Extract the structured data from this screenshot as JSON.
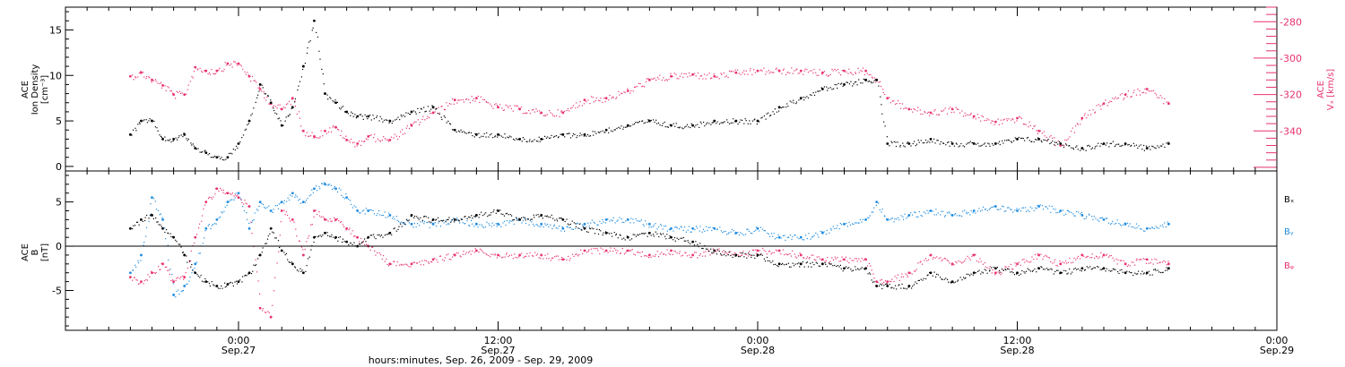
{
  "colors": {
    "black": "#000000",
    "pink": "#e8336d",
    "blue": "#1f8ce0"
  },
  "chart_data": [
    {
      "type": "scatter",
      "panel": "top",
      "left_axis": {
        "label_lines": [
          "ACE",
          "Ion Density",
          "[cm⁻³]"
        ],
        "ylim": [
          -0.5,
          17.5
        ],
        "ticks": [
          0,
          5,
          10,
          15
        ],
        "tick_labels": [
          "0",
          "5",
          "10",
          "15"
        ]
      },
      "right_axis": {
        "label_lines": [
          "ACE",
          "Vₓ [km/s]"
        ],
        "ylim": [
          -362,
          -272
        ],
        "ticks": [
          -280,
          -300,
          -320,
          -340
        ],
        "tick_labels": [
          "-280",
          "-300",
          "-320",
          "-340"
        ]
      },
      "grid": false,
      "series": [
        {
          "axis": "left",
          "color": "#000000",
          "x": [
            -5,
            -4.5,
            -4,
            -3.5,
            -3,
            -2.5,
            -2,
            -1.5,
            -1,
            -0.5,
            0,
            0.5,
            1,
            1.5,
            2,
            2.5,
            3,
            3.5,
            4,
            4.5,
            5,
            5.5,
            6,
            7,
            8,
            9,
            10,
            11,
            12,
            13,
            14,
            15,
            16,
            17,
            18,
            19,
            20,
            21,
            22,
            23,
            24,
            25,
            26,
            27,
            28,
            29,
            29.5,
            30,
            31,
            32,
            33,
            34,
            35,
            36,
            37,
            38,
            39,
            40,
            41,
            42,
            43
          ],
          "values": [
            3.5,
            5,
            5,
            3,
            3,
            3.5,
            2,
            1.5,
            1,
            1,
            2.5,
            5,
            9,
            7,
            4.5,
            6.5,
            11,
            16,
            8,
            7,
            6,
            5.5,
            5.5,
            5,
            6,
            6.5,
            4,
            3.5,
            3.5,
            3,
            3,
            3.5,
            3.5,
            4,
            4.5,
            5,
            4.5,
            4.5,
            5,
            5,
            5,
            6.5,
            7.5,
            8.5,
            9,
            9.5,
            9.5,
            2.5,
            2.5,
            3,
            2.5,
            2.5,
            2.5,
            3,
            3,
            2.5,
            2,
            2.5,
            2.5,
            2,
            2.5
          ]
        },
        {
          "axis": "right",
          "color": "#e8336d",
          "x": [
            -5,
            -4.5,
            -4,
            -3.5,
            -3,
            -2.5,
            -2,
            -1.5,
            -1,
            -0.5,
            0,
            0.5,
            1,
            1.5,
            2,
            2.5,
            3,
            3.5,
            4,
            4.5,
            5,
            5.5,
            6,
            7,
            8,
            9,
            10,
            11,
            12,
            13,
            14,
            15,
            16,
            17,
            18,
            19,
            20,
            21,
            22,
            23,
            24,
            25,
            26,
            27,
            28,
            29,
            29.5,
            30,
            31,
            32,
            33,
            34,
            35,
            36,
            37,
            38,
            39,
            40,
            41,
            42,
            43
          ],
          "values": [
            -310,
            -308,
            -312,
            -315,
            -320,
            -320,
            -305,
            -307,
            -307,
            -303,
            -303,
            -310,
            -317,
            -325,
            -328,
            -322,
            -340,
            -343,
            -340,
            -338,
            -345,
            -347,
            -343,
            -345,
            -337,
            -330,
            -323,
            -322,
            -327,
            -328,
            -330,
            -330,
            -323,
            -322,
            -318,
            -312,
            -310,
            -309,
            -310,
            -308,
            -307,
            -307,
            -307,
            -308,
            -307,
            -307,
            -312,
            -322,
            -328,
            -330,
            -328,
            -332,
            -335,
            -333,
            -340,
            -348,
            -333,
            -325,
            -320,
            -317,
            -325
          ]
        }
      ]
    },
    {
      "type": "scatter",
      "panel": "bottom",
      "left_axis": {
        "label_lines": [
          "ACE",
          "B",
          "[nT]"
        ],
        "ylim": [
          -9.5,
          8.5
        ],
        "ticks": [
          -5,
          0,
          5
        ],
        "tick_labels": [
          "-5",
          "0",
          "5"
        ]
      },
      "zero_line": true,
      "grid": false,
      "legend_position": "right",
      "series": [
        {
          "name": "Bₓ",
          "color": "#000000",
          "x": [
            -5,
            -4.5,
            -4,
            -3.5,
            -3,
            -2.5,
            -2,
            -1.5,
            -1,
            -0.5,
            0,
            0.5,
            1,
            1.5,
            2,
            2.5,
            3,
            3.5,
            4,
            4.5,
            5,
            5.5,
            6,
            7,
            8,
            9,
            10,
            11,
            12,
            13,
            14,
            15,
            16,
            17,
            18,
            19,
            20,
            21,
            22,
            23,
            24,
            25,
            26,
            27,
            28,
            29,
            29.5,
            30,
            31,
            32,
            33,
            34,
            35,
            36,
            37,
            38,
            39,
            40,
            41,
            42,
            43
          ],
          "values": [
            2,
            3,
            3.5,
            2,
            1,
            -1,
            -3,
            -4,
            -4.5,
            -4.3,
            -4,
            -3,
            -1,
            2,
            -0.5,
            -2,
            -3,
            1,
            1.5,
            1,
            0.5,
            0,
            1,
            1.5,
            3.5,
            3,
            3,
            3.5,
            4,
            3,
            3.5,
            3,
            2,
            1.5,
            1,
            1.5,
            1,
            0.5,
            -0.5,
            -1,
            -1,
            -2,
            -2,
            -2,
            -2.5,
            -2.5,
            -4.5,
            -4.5,
            -4.5,
            -3,
            -4,
            -3,
            -2.5,
            -3,
            -2.5,
            -3,
            -2.5,
            -2.5,
            -3,
            -3,
            -2.5
          ]
        },
        {
          "name": "Bᵧ",
          "color": "#1f8ce0",
          "x": [
            -5,
            -4.5,
            -4,
            -3.5,
            -3,
            -2.5,
            -2,
            -1.5,
            -1,
            -0.5,
            0,
            0.5,
            1,
            1.5,
            2,
            2.5,
            3,
            3.5,
            4,
            4.5,
            5,
            5.5,
            6,
            7,
            8,
            9,
            10,
            11,
            12,
            13,
            14,
            15,
            16,
            17,
            18,
            19,
            20,
            21,
            22,
            23,
            24,
            25,
            26,
            27,
            28,
            29,
            29.5,
            30,
            31,
            32,
            33,
            34,
            35,
            36,
            37,
            38,
            39,
            40,
            41,
            42,
            43
          ],
          "values": [
            -3,
            -1,
            5.5,
            3,
            -5.5,
            -4.5,
            -2,
            2,
            3,
            5,
            6,
            2,
            5,
            4,
            5,
            6,
            5,
            6.5,
            7,
            6.5,
            5.5,
            4,
            4,
            3.5,
            2.5,
            2.5,
            3,
            2.5,
            2.5,
            3,
            2.5,
            2,
            2.5,
            3,
            3,
            2.5,
            2,
            2,
            2,
            1.5,
            2,
            1,
            1,
            1.5,
            2.5,
            3,
            5,
            3,
            3.5,
            4,
            3.5,
            4,
            4.5,
            4,
            4.5,
            4,
            3.5,
            3,
            2.5,
            2,
            2.5
          ]
        },
        {
          "name": "Bᵩ",
          "color": "#e8336d",
          "x": [
            -5,
            -4.5,
            -4,
            -3.5,
            -3,
            -2.5,
            -2,
            -1.5,
            -1,
            -0.5,
            0,
            0.5,
            1,
            1.5,
            2,
            2.5,
            3,
            3.5,
            4,
            4.5,
            5,
            5.5,
            6,
            7,
            8,
            9,
            10,
            11,
            12,
            13,
            14,
            15,
            16,
            17,
            18,
            19,
            20,
            21,
            22,
            23,
            24,
            25,
            26,
            27,
            28,
            29,
            29.5,
            30,
            31,
            32,
            33,
            34,
            35,
            36,
            37,
            38,
            39,
            40,
            41,
            42,
            43
          ],
          "values": [
            -3.5,
            -4,
            -3,
            -2,
            -4,
            -3.5,
            1,
            5,
            6.5,
            6,
            5.5,
            4.5,
            -7,
            -8,
            4,
            3,
            -1,
            4,
            3,
            3,
            2,
            1,
            0,
            -2,
            -2,
            -1.5,
            -1,
            -0.5,
            -1,
            -1,
            -1,
            -1.5,
            -0.5,
            -0.5,
            -0.5,
            -1,
            -0.5,
            -1,
            -0.5,
            -1,
            -0.5,
            -0.5,
            -1,
            -1.5,
            -1.5,
            -1.5,
            -4,
            -4,
            -3,
            -1,
            -2,
            -1,
            -3,
            -2,
            -1,
            -2,
            -1,
            -1,
            -2,
            -1.5,
            -2
          ]
        }
      ]
    }
  ],
  "x_axis": {
    "xlim": [
      -8,
      48
    ],
    "major_ticks": [
      0,
      12,
      24,
      36,
      48
    ],
    "tick_label_lines": [
      [
        "0:00",
        "Sep.27"
      ],
      [
        "12:00",
        "Sep.27"
      ],
      [
        "0:00",
        "Sep.28"
      ],
      [
        "12:00",
        "Sep.28"
      ],
      [
        "0:00",
        "Sep.29"
      ]
    ],
    "title": "hours:minutes, Sep. 26, 2009 - Sep. 29, 2009"
  }
}
